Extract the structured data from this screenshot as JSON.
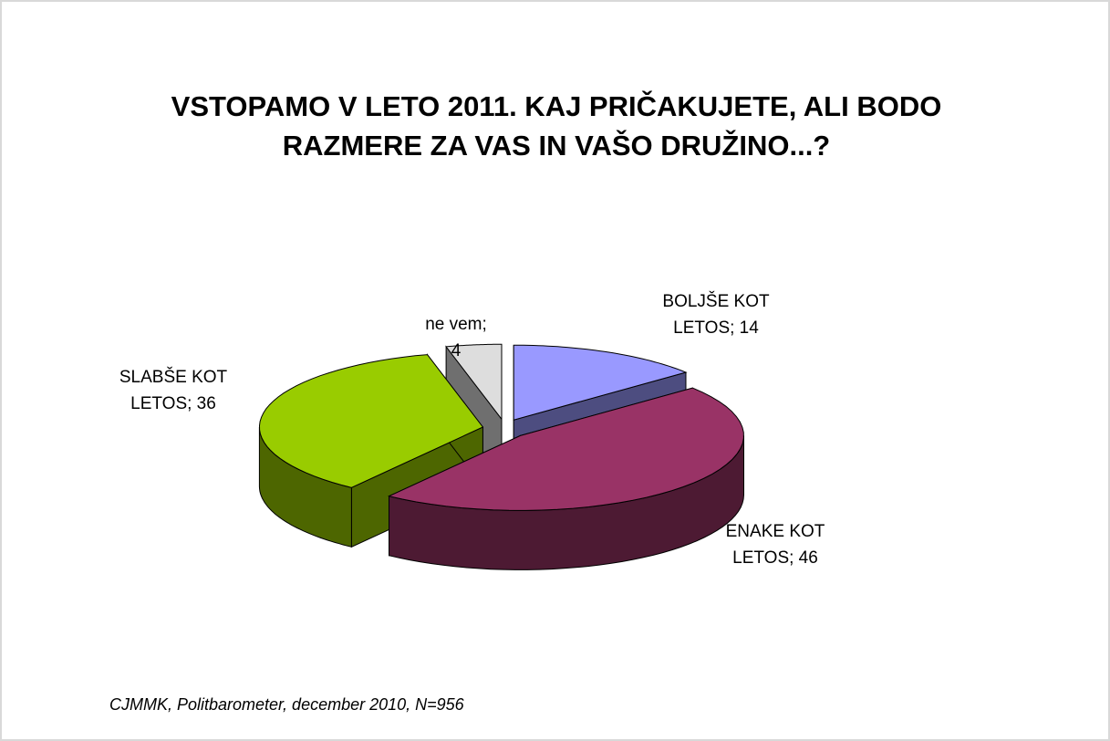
{
  "chart_data": {
    "type": "pie3d",
    "title": "VSTOPAMO V LETO 2011. KAJ PRIČAKUJETE, ALI BODO RAZMERE ZA VAS IN VAŠO DRUŽINO...?",
    "values": [
      14,
      46,
      36,
      4
    ],
    "value_labels": [
      "BOLJŠE KOT LETOS; 14",
      "ENAKE KOT LETOS; 46",
      "SLABŠE KOT LETOS; 36",
      "ne vem; 4"
    ],
    "colors": [
      "#9999ff",
      "#993366",
      "#99cc00",
      "#dddddd"
    ],
    "source": "CJMMK, Politbarometer, december 2010, N=956"
  }
}
